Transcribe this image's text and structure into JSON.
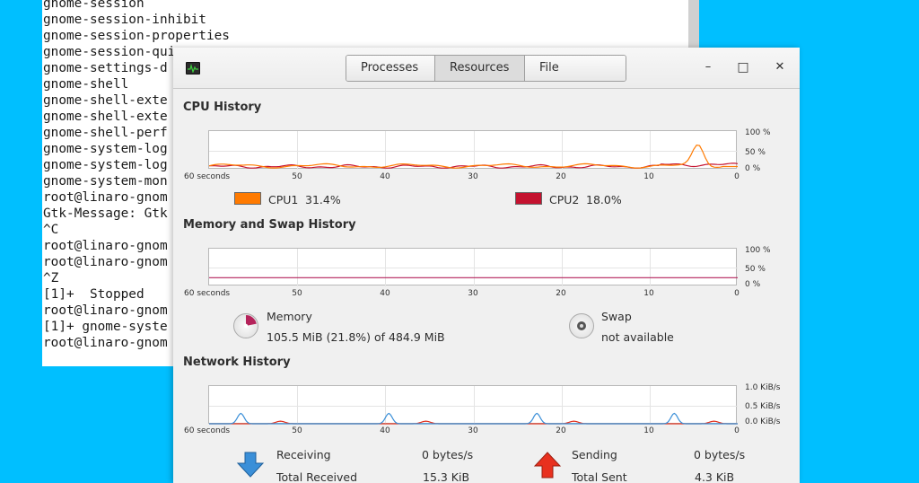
{
  "terminal": {
    "lines": [
      "gnome-session",
      "gnome-session-inhibit",
      "gnome-session-properties",
      "gnome-session-qui",
      "gnome-settings-d",
      "gnome-shell",
      "gnome-shell-exte",
      "gnome-shell-exte",
      "gnome-shell-perf",
      "gnome-system-log",
      "gnome-system-log",
      "gnome-system-mon",
      "root@linaro-gnom",
      "Gtk-Message: Gtk",
      "^C",
      "root@linaro-gnom",
      "root@linaro-gnom",
      "^Z",
      "[1]+  Stopped",
      "root@linaro-gnom",
      "[1]+ gnome-syste",
      "root@linaro-gnom"
    ]
  },
  "monitor": {
    "tabs": [
      "Processes",
      "Resources",
      "File Systems"
    ],
    "active_tab": "Resources",
    "window_buttons": {
      "minimize": "–",
      "maximize": "□",
      "close": "✕"
    },
    "cpu": {
      "title": "CPU History",
      "y_labels": [
        "100 %",
        "50 %",
        "0 %"
      ],
      "x_labels": [
        "60 seconds",
        "50",
        "40",
        "30",
        "20",
        "10",
        "0"
      ],
      "cpu1": {
        "label": "CPU1",
        "value": "31.4%",
        "color": "#ff7a00"
      },
      "cpu2": {
        "label": "CPU2",
        "value": "18.0%",
        "color": "#c4122f"
      }
    },
    "memory": {
      "title": "Memory and Swap History",
      "y_labels": [
        "100 %",
        "50 %",
        "0 %"
      ],
      "x_labels": [
        "60 seconds",
        "50",
        "40",
        "30",
        "20",
        "10",
        "0"
      ],
      "memory_label": "Memory",
      "memory_value": "105.5 MiB (21.8%) of 484.9 MiB",
      "memory_fraction": 0.218,
      "memory_color": "#b5235b",
      "swap_label": "Swap",
      "swap_value": "not available"
    },
    "network": {
      "title": "Network History",
      "y_labels": [
        "1.0 KiB/s",
        "0.5 KiB/s",
        "0.0 KiB/s"
      ],
      "x_labels": [
        "60 seconds",
        "50",
        "40",
        "30",
        "20",
        "10",
        "0"
      ],
      "receiving_label": "Receiving",
      "receiving_value": "0 bytes/s",
      "total_received_label": "Total Received",
      "total_received_value": "15.3 KiB",
      "sending_label": "Sending",
      "sending_value": "0 bytes/s",
      "total_sent_label": "Total Sent",
      "total_sent_value": "4.3 KiB",
      "receive_color": "#3a8fd8",
      "send_color": "#e0301e"
    }
  }
}
